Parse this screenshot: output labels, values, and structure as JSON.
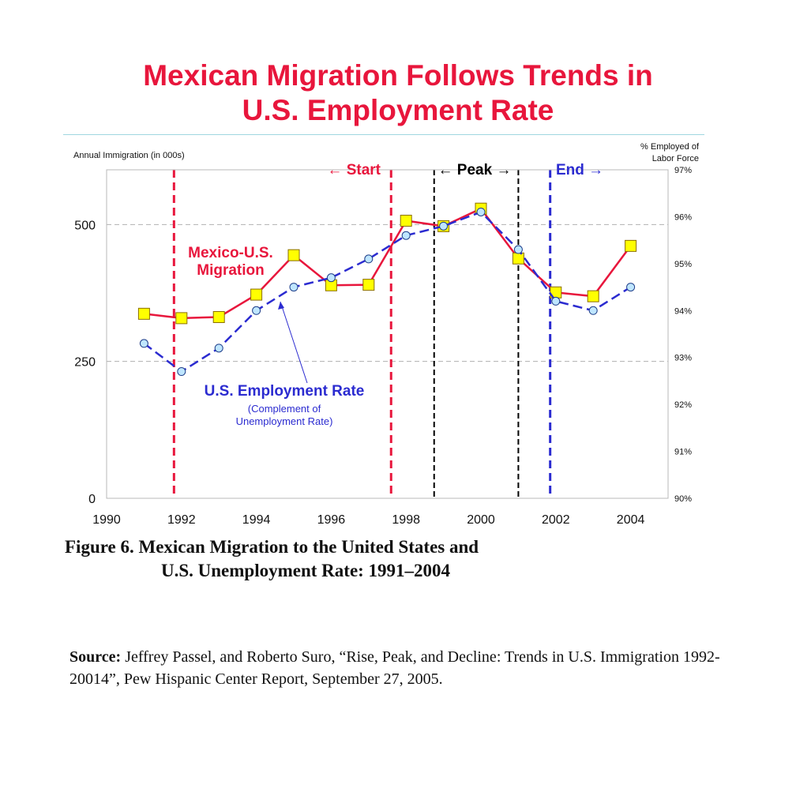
{
  "page": {
    "title_line1": "Mexican Migration Follows Trends in",
    "title_line2": "U.S. Employment Rate",
    "caption_line1": "Figure 6.  Mexican Migration to the United States and",
    "caption_line2": "U.S. Unemployment Rate:  1991–2004",
    "source_label": "Source:",
    "source_text": " Jeffrey Passel, and  Roberto Suro, “Rise, Peak, and Decline: Trends in U.S. Immigration 1992-20014”, Pew Hispanic Center  Report, September 27, 2005."
  },
  "chart_data": {
    "type": "line",
    "left_axis_label": "Annual Immigration (in 000s)",
    "right_axis_label_line1": "% Employed of",
    "right_axis_label_line2": "Labor Force",
    "xlim": [
      1990,
      2005
    ],
    "x_ticks": [
      "1990",
      "1992",
      "1994",
      "1996",
      "1998",
      "2000",
      "2002",
      "2004"
    ],
    "ylim_left": [
      0,
      600
    ],
    "y_ticks_left": [
      "0",
      "250",
      "500"
    ],
    "ylim_right": [
      90,
      97
    ],
    "y_ticks_right": [
      "90%",
      "91%",
      "92%",
      "93%",
      "94%",
      "95%",
      "96%",
      "97%"
    ],
    "grid": "horizontal dashed at 250 and 500",
    "series": [
      {
        "name": "Mexico-U.S. Migration",
        "name_line1": "Mexico-U.S.",
        "name_line2": "Migration",
        "axis": "left",
        "color": "#e8163c",
        "marker_color": "#ffff00",
        "x": [
          1991,
          1992,
          1993,
          1994,
          1995,
          1996,
          1997,
          1998,
          1999,
          2000,
          2001,
          2002,
          2003,
          2004
        ],
        "values": [
          337,
          329,
          331,
          372,
          444,
          389,
          390,
          507,
          497,
          529,
          438,
          376,
          369,
          461
        ]
      },
      {
        "name": "U.S. Employment Rate",
        "subtitle_line1": "(Complement of",
        "subtitle_line2": "Unemployment Rate)",
        "axis": "right",
        "color": "#2b2bd0",
        "marker_color": "#bfe6ff",
        "x": [
          1991,
          1992,
          1993,
          1994,
          1995,
          1996,
          1997,
          1998,
          1999,
          2000,
          2001,
          2002,
          2003,
          2004
        ],
        "values": [
          93.3,
          92.7,
          93.2,
          94.0,
          94.5,
          94.7,
          95.1,
          95.6,
          95.8,
          96.1,
          95.3,
          94.2,
          94.0,
          94.5
        ]
      }
    ],
    "phases": [
      {
        "label": "← Start",
        "x": 1997.6,
        "color": "#e8163c"
      },
      {
        "label": "← Peak →",
        "x_from": 1998.75,
        "x_to": 2001.0,
        "color": "#000000"
      },
      {
        "label": "End →",
        "x": 2001.85,
        "color": "#2b2bd0"
      }
    ],
    "vertical_lines": [
      {
        "x": 1991.8,
        "color": "#e8163c"
      },
      {
        "x": 1997.6,
        "color": "#e8163c"
      },
      {
        "x": 1998.75,
        "color": "#000000"
      },
      {
        "x": 2001.0,
        "color": "#000000"
      },
      {
        "x": 2001.85,
        "color": "#2b2bd0"
      }
    ]
  }
}
